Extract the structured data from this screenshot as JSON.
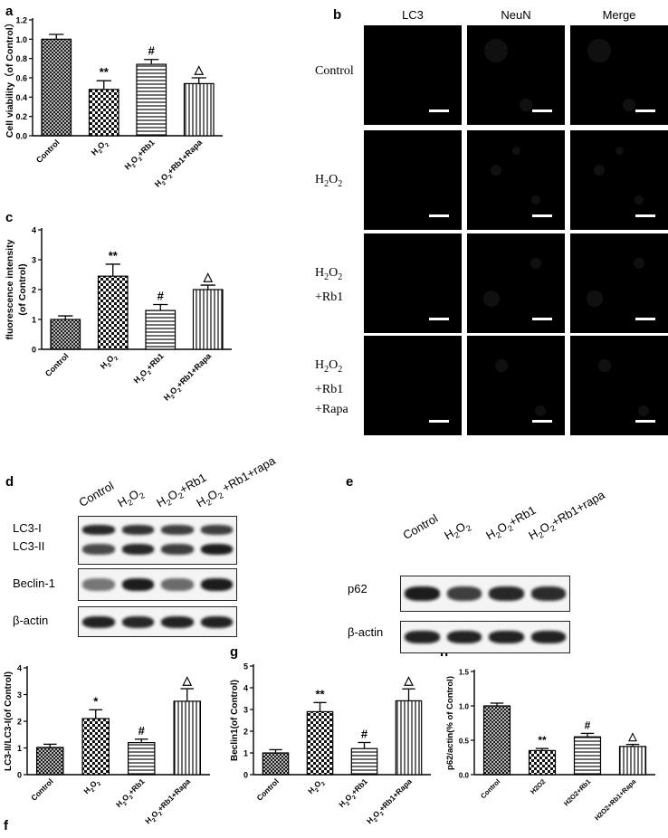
{
  "panel_letters": {
    "a": "a",
    "b": "b",
    "c": "c",
    "d": "d",
    "e": "e",
    "f": "f",
    "g": "g",
    "h": "h"
  },
  "colors": {
    "ink": "#000000",
    "background": "#ffffff",
    "micro_bg": "#000000",
    "blot_bg": "#f4f4f4"
  },
  "chart_data": [
    {
      "id": "a",
      "type": "bar",
      "ylabel": "Cell viability（of Control）",
      "ylim": [
        0,
        1.2
      ],
      "yticks": [
        "0.0",
        "0.2",
        "0.4",
        "0.6",
        "0.8",
        "1.0",
        "1.2"
      ],
      "categories": [
        {
          "main": "Control"
        },
        {
          "main": "H",
          "sub": "2",
          "main2": "O",
          "sub2": "2"
        },
        {
          "main": "H",
          "sub": "2",
          "main2": "O",
          "sub2": "2",
          "tail": "+Rb1"
        },
        {
          "main": "H",
          "sub": "2",
          "main2": "O",
          "sub2": "2",
          "tail": "+Rb1+Rapa"
        }
      ],
      "values": [
        1.0,
        0.48,
        0.74,
        0.54
      ],
      "errors": [
        0.05,
        0.09,
        0.05,
        0.06
      ],
      "patterns": [
        "cross",
        "check",
        "hstripe",
        "vstripe"
      ],
      "annotations": [
        "",
        "**",
        "#",
        "△"
      ]
    },
    {
      "id": "c",
      "type": "bar",
      "ylabel": "fluorescence intensity",
      "ylabel2": "(of Control)",
      "ylim": [
        0,
        4
      ],
      "yticks": [
        "0",
        "1",
        "2",
        "3",
        "4"
      ],
      "categories": [
        {
          "main": "Control"
        },
        {
          "main": "H",
          "sub": "2",
          "main2": "O",
          "sub2": "2"
        },
        {
          "main": "H",
          "sub": "2",
          "main2": "O",
          "sub2": "2",
          "tail": "+Rb1"
        },
        {
          "main": "H",
          "sub": "2",
          "main2": "O",
          "sub2": "2",
          "tail": "+Rb1+Rapa"
        }
      ],
      "values": [
        1.0,
        2.45,
        1.3,
        2.0
      ],
      "errors": [
        0.12,
        0.4,
        0.2,
        0.15
      ],
      "patterns": [
        "cross",
        "check",
        "hstripe",
        "vstripe"
      ],
      "annotations": [
        "",
        "**",
        "#",
        "△"
      ]
    },
    {
      "id": "f",
      "type": "bar",
      "ylabel": "LC3-II/LC3-I(of Control)",
      "ylim": [
        0,
        4
      ],
      "yticks": [
        "0",
        "1",
        "2",
        "3",
        "4"
      ],
      "categories": [
        {
          "main": "Control"
        },
        {
          "main": "H",
          "sub": "2",
          "main2": "O",
          "sub2": "2"
        },
        {
          "main": "H",
          "sub": "2",
          "main2": "O",
          "sub2": "2",
          "tail": "+Rb1"
        },
        {
          "main": "H",
          "sub": "2",
          "main2": "O",
          "sub2": "2",
          "tail": "+Rb1+Rapa"
        }
      ],
      "values": [
        1.02,
        2.1,
        1.2,
        2.75
      ],
      "errors": [
        0.12,
        0.33,
        0.13,
        0.47
      ],
      "patterns": [
        "cross",
        "check",
        "hstripe",
        "vstripe"
      ],
      "annotations": [
        "",
        "*",
        "#",
        "△"
      ]
    },
    {
      "id": "g",
      "type": "bar",
      "ylabel": "Beclin1(of Control)",
      "ylim": [
        0,
        5
      ],
      "yticks": [
        "0",
        "1",
        "2",
        "3",
        "4",
        "5"
      ],
      "categories": [
        {
          "main": "Control"
        },
        {
          "main": "H",
          "sub": "2",
          "main2": "O",
          "sub2": "2"
        },
        {
          "main": "H",
          "sub": "2",
          "main2": "O",
          "sub2": "2",
          "tail": "+Rb1"
        },
        {
          "main": "H",
          "sub": "2",
          "main2": "O",
          "sub2": "2",
          "tail": "+Rb1+Rapa"
        }
      ],
      "values": [
        1.0,
        2.9,
        1.2,
        3.4
      ],
      "errors": [
        0.15,
        0.42,
        0.28,
        0.55
      ],
      "patterns": [
        "cross",
        "check",
        "hstripe",
        "vstripe"
      ],
      "annotations": [
        "",
        "**",
        "#",
        "△"
      ]
    },
    {
      "id": "h",
      "type": "bar",
      "ylabel": "p62/actin(% of Control)",
      "ylim": [
        0,
        1.5
      ],
      "yticks": [
        "0.0",
        "0.5",
        "1.0",
        "1.5"
      ],
      "categories": [
        {
          "main": "Control"
        },
        {
          "main": "H2O2"
        },
        {
          "main": "H2O2+Rb1"
        },
        {
          "main": "H2O2+Rb1+Rapa"
        }
      ],
      "values": [
        1.0,
        0.35,
        0.55,
        0.41
      ],
      "errors": [
        0.04,
        0.03,
        0.05,
        0.03
      ],
      "patterns": [
        "cross",
        "check",
        "hstripe",
        "vstripe"
      ],
      "annotations": [
        "",
        "**",
        "#",
        "△"
      ]
    }
  ],
  "microscopy": {
    "columns": [
      "LC3",
      "NeuN",
      "Merge"
    ],
    "rows": [
      {
        "lines": [
          {
            "main": "Control"
          }
        ]
      },
      {
        "lines": [
          {
            "main": "H",
            "sub": "2",
            "main2": "O",
            "sub2": "2"
          }
        ]
      },
      {
        "lines": [
          {
            "main": "H",
            "sub": "2",
            "main2": "O",
            "sub2": "2"
          },
          {
            "main": "+Rb1"
          }
        ]
      },
      {
        "lines": [
          {
            "main": "H",
            "sub": "2",
            "main2": "O",
            "sub2": "2"
          },
          {
            "main": "+Rb1"
          },
          {
            "main": "+Rapa"
          }
        ]
      }
    ]
  },
  "blot_d": {
    "lanes": [
      {
        "main": "Control"
      },
      {
        "main": "H",
        "sub": "2",
        "main2": "O",
        "sub2": "2"
      },
      {
        "main": "H",
        "sub": "2",
        "main2": "O",
        "sub2": "2",
        "tail": "+Rb1"
      },
      {
        "main": "H",
        "sub": "2",
        "main2": "O",
        "sub2": "2",
        "tail": " +Rb1+rapa"
      }
    ],
    "rows": [
      {
        "label": "LC3-I",
        "label2": "LC3-II",
        "kind": "double"
      },
      {
        "label": "Beclin-1",
        "kind": "single"
      },
      {
        "label": "β-actin",
        "kind": "single"
      }
    ]
  },
  "blot_e": {
    "lanes": [
      {
        "main": "Control"
      },
      {
        "main": "H",
        "sub": "2",
        "main2": "O",
        "sub2": "2"
      },
      {
        "main": "H",
        "sub": "2",
        "main2": "O",
        "sub2": "2",
        "tail": "+Rb1"
      },
      {
        "main": "H",
        "sub": "2",
        "main2": "O",
        "sub2": "2",
        "tail": "+Rb1+rapa"
      }
    ],
    "rows": [
      {
        "label": "p62",
        "kind": "single"
      },
      {
        "label": "β-actin",
        "kind": "single"
      }
    ]
  }
}
